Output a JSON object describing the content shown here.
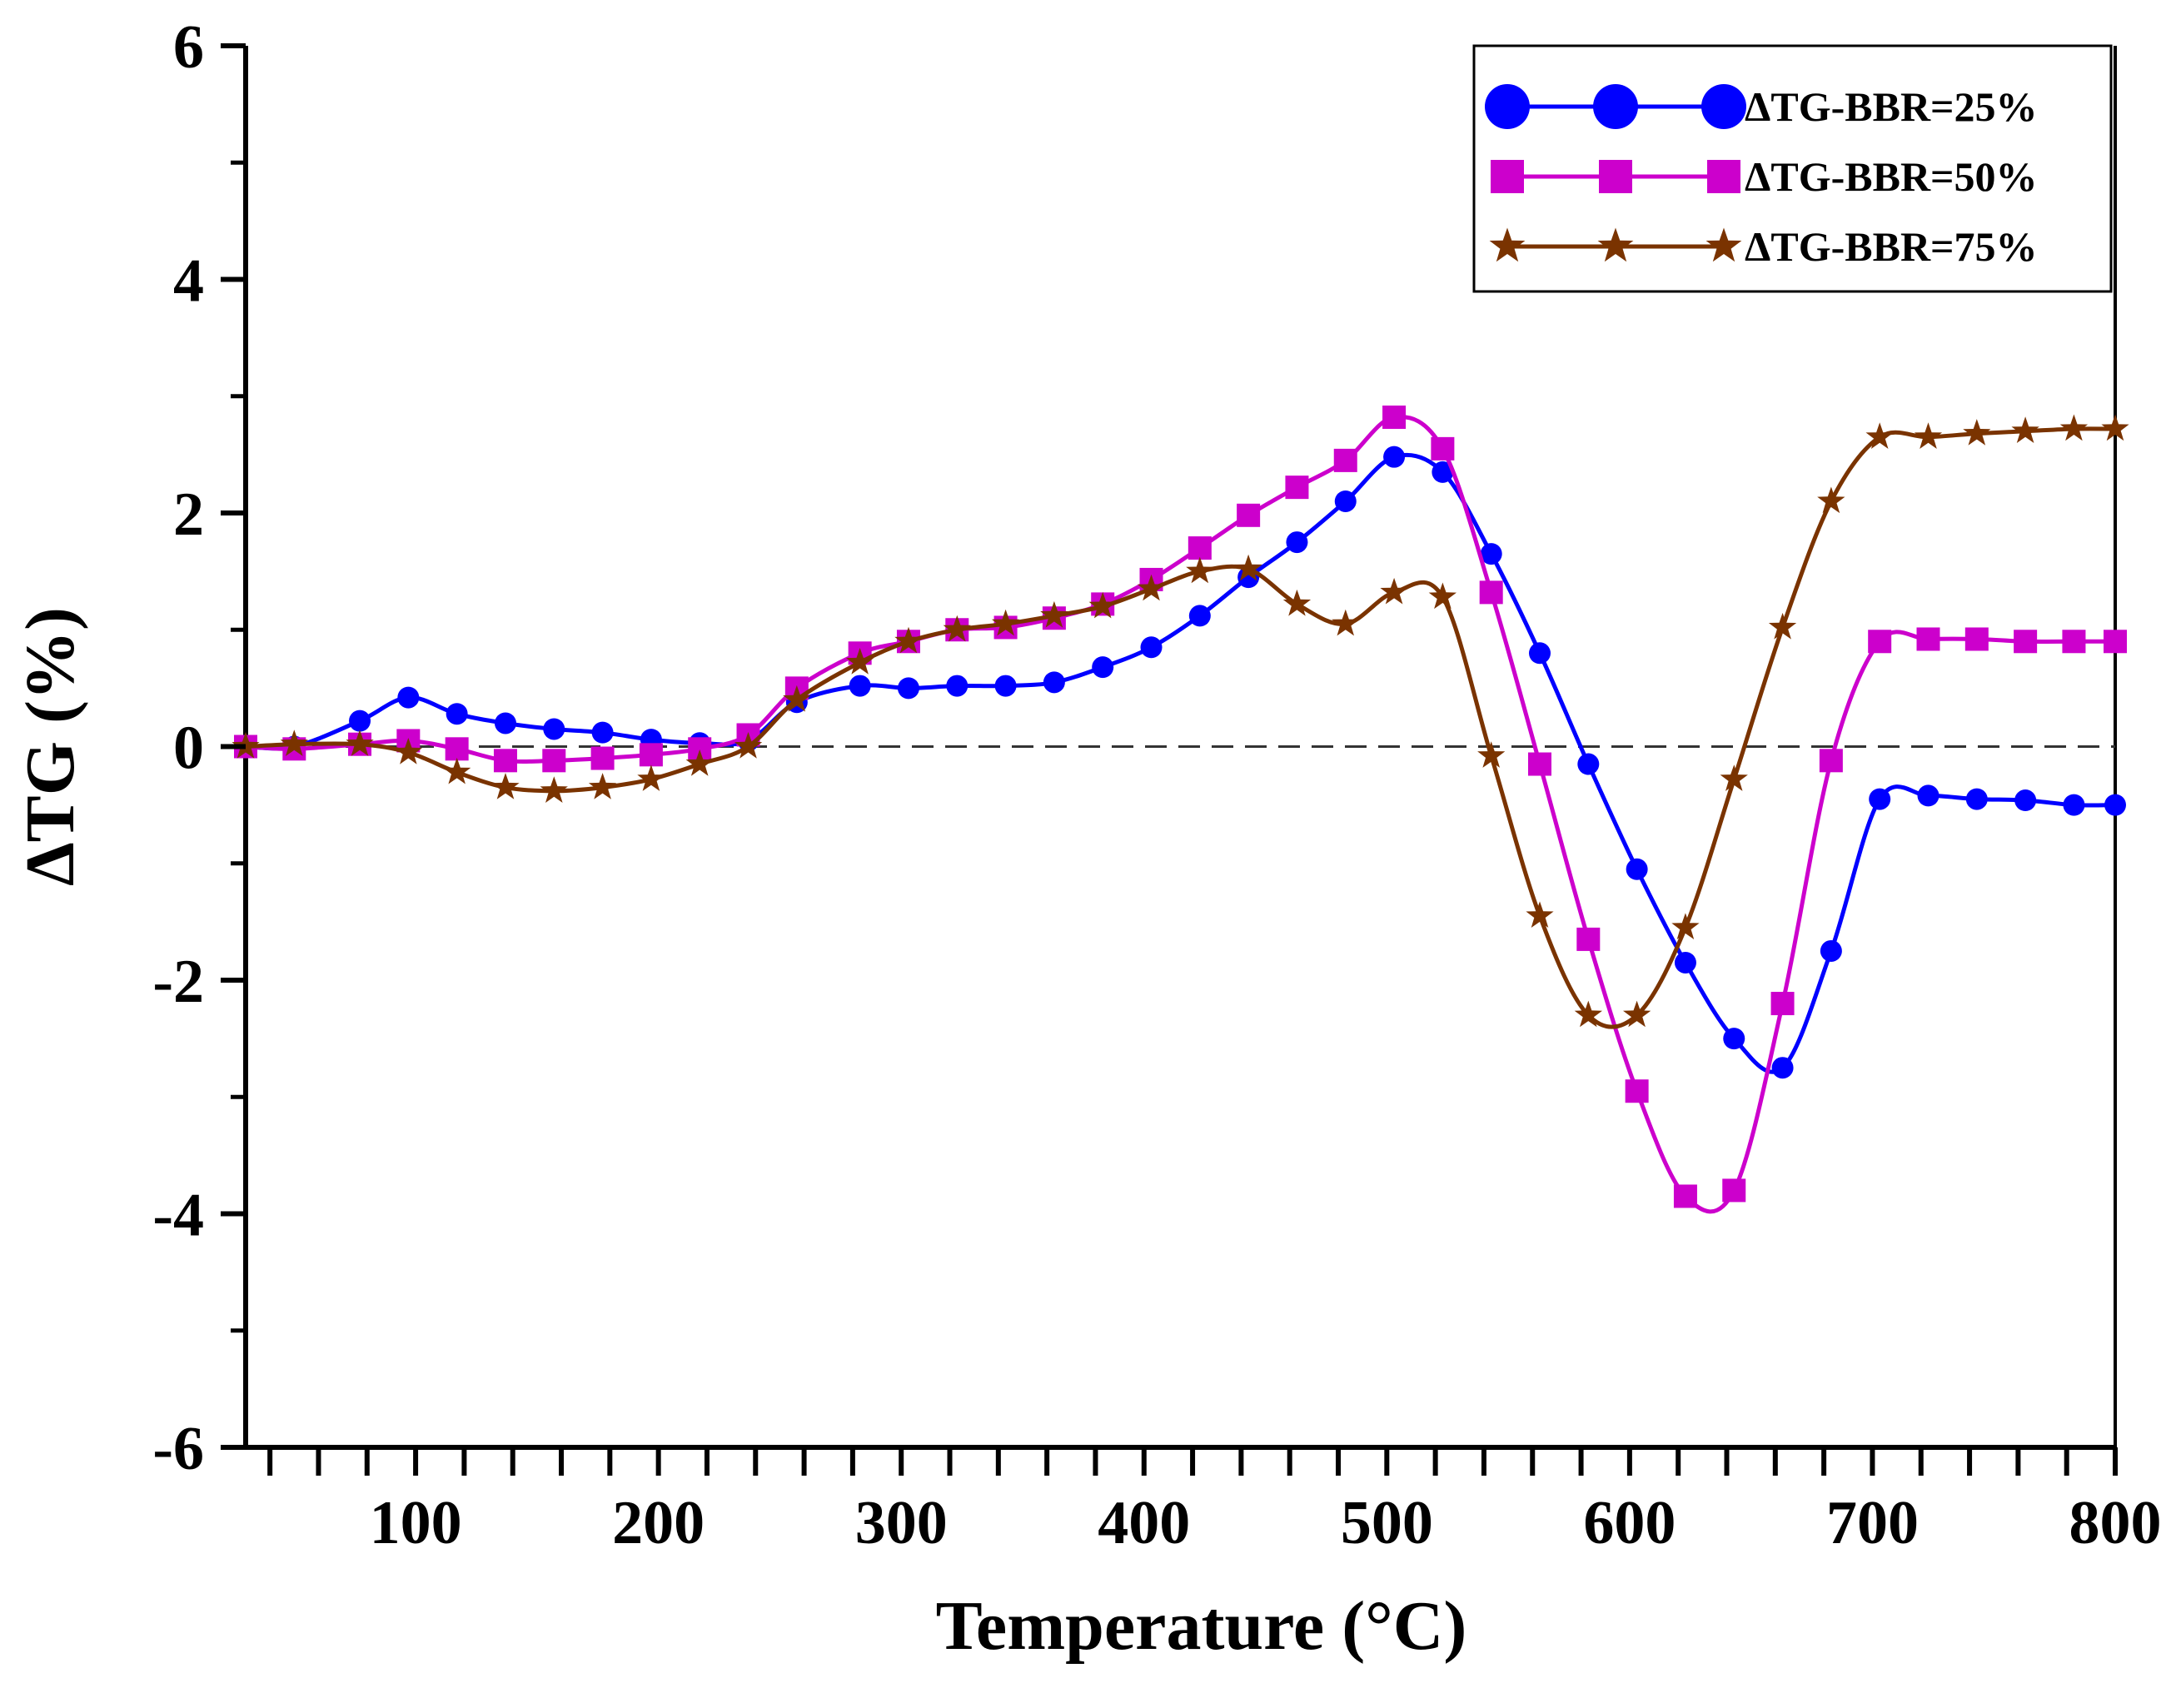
{
  "chart_data": {
    "type": "line",
    "title": "",
    "xlabel": "Temperature (°C)",
    "ylabel": "ΔTG (%)",
    "xlim": [
      30,
      800
    ],
    "ylim": [
      -6,
      6
    ],
    "xticks": [
      100,
      200,
      300,
      400,
      500,
      600,
      700,
      800
    ],
    "yticks": [
      -6,
      -4,
      -2,
      0,
      2,
      4,
      6
    ],
    "reference_line": 0,
    "legend_position": "top-right",
    "series": [
      {
        "name": "ΔTG-BBR=25%",
        "color": "#0000ff",
        "marker": "circle",
        "x": [
          30,
          50,
          77,
          97,
          117,
          137,
          157,
          177,
          197,
          217,
          237,
          257,
          283,
          303,
          323,
          343,
          363,
          383,
          403,
          423,
          443,
          463,
          483,
          503,
          523,
          543,
          563,
          583,
          603,
          623,
          643,
          663,
          683,
          703,
          723,
          743,
          763,
          783,
          800
        ],
        "y": [
          0.0,
          0.0,
          0.22,
          0.42,
          0.28,
          0.2,
          0.15,
          0.12,
          0.06,
          0.03,
          0.05,
          0.38,
          0.52,
          0.5,
          0.52,
          0.52,
          0.55,
          0.68,
          0.85,
          1.12,
          1.45,
          1.75,
          2.1,
          2.48,
          2.35,
          1.65,
          0.8,
          -0.15,
          -1.05,
          -1.85,
          -2.5,
          -2.75,
          -1.75,
          -0.45,
          -0.42,
          -0.45,
          -0.46,
          -0.5,
          -0.5
        ]
      },
      {
        "name": "ΔTG-BBR=50%",
        "color": "#cc00cc",
        "marker": "square",
        "x": [
          30,
          50,
          77,
          97,
          117,
          137,
          157,
          177,
          197,
          217,
          237,
          257,
          283,
          303,
          323,
          343,
          363,
          383,
          403,
          423,
          443,
          463,
          483,
          503,
          523,
          543,
          563,
          583,
          603,
          623,
          643,
          663,
          683,
          703,
          723,
          743,
          763,
          783,
          800
        ],
        "y": [
          0.0,
          -0.02,
          0.02,
          0.05,
          -0.02,
          -0.12,
          -0.12,
          -0.1,
          -0.07,
          -0.02,
          0.1,
          0.5,
          0.8,
          0.9,
          1.0,
          1.02,
          1.1,
          1.22,
          1.43,
          1.7,
          1.98,
          2.22,
          2.45,
          2.82,
          2.55,
          1.32,
          -0.15,
          -1.65,
          -2.95,
          -3.85,
          -3.8,
          -2.2,
          -0.12,
          0.9,
          0.92,
          0.92,
          0.9,
          0.9,
          0.9
        ]
      },
      {
        "name": "ΔTG-BBR=75%",
        "color": "#7a3300",
        "marker": "star",
        "x": [
          30,
          50,
          77,
          97,
          117,
          137,
          157,
          177,
          197,
          217,
          237,
          257,
          283,
          303,
          323,
          343,
          363,
          383,
          403,
          423,
          443,
          463,
          483,
          503,
          523,
          543,
          563,
          583,
          603,
          623,
          643,
          663,
          683,
          703,
          723,
          743,
          763,
          783,
          800
        ],
        "y": [
          0.0,
          0.02,
          0.02,
          -0.05,
          -0.22,
          -0.35,
          -0.38,
          -0.35,
          -0.28,
          -0.15,
          0.0,
          0.4,
          0.72,
          0.9,
          1.0,
          1.05,
          1.12,
          1.2,
          1.35,
          1.5,
          1.52,
          1.22,
          1.05,
          1.32,
          1.28,
          -0.08,
          -1.45,
          -2.3,
          -2.3,
          -1.55,
          -0.28,
          1.02,
          2.1,
          2.65,
          2.65,
          2.68,
          2.7,
          2.72,
          2.72
        ]
      }
    ]
  }
}
